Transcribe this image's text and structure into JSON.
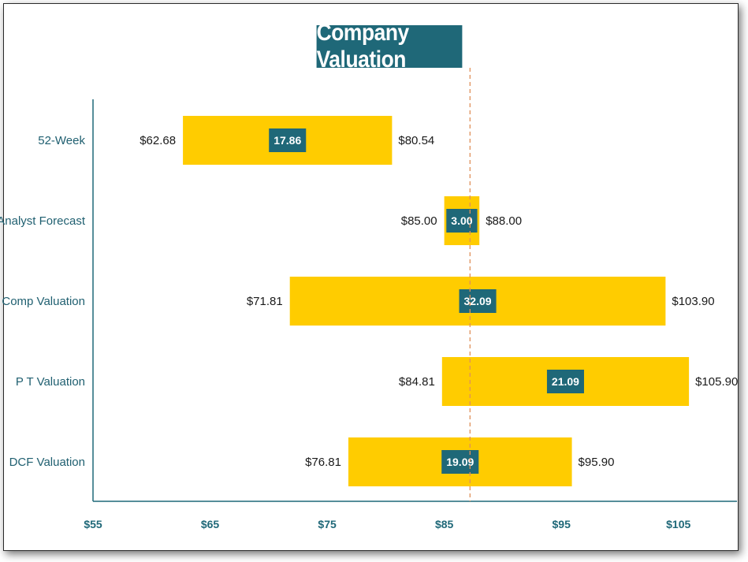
{
  "chart_data": {
    "type": "bar",
    "orientation": "horizontal-floating",
    "title": "Company Valuation",
    "xlim": [
      55,
      110
    ],
    "x_ticks": [
      {
        "value": 55,
        "label": "$55"
      },
      {
        "value": 65,
        "label": "$65"
      },
      {
        "value": 75,
        "label": "$75"
      },
      {
        "value": 85,
        "label": "$85"
      },
      {
        "value": 95,
        "label": "$95"
      },
      {
        "value": 105,
        "label": "$105"
      }
    ],
    "reference_line": 87.2,
    "categories": [
      "52-Week",
      "Analyst Forecast",
      "Comp Valuation",
      "P T Valuation",
      "DCF Valuation"
    ],
    "bars": [
      {
        "category": "52-Week",
        "low": 62.68,
        "high": 80.54,
        "low_label": "$62.68",
        "high_label": "$80.54",
        "diff_label": "17.86"
      },
      {
        "category": "Analyst Forecast",
        "low": 85.0,
        "high": 88.0,
        "low_label": "$85.00",
        "high_label": "$88.00",
        "diff_label": "3.00"
      },
      {
        "category": "Comp Valuation",
        "low": 71.81,
        "high": 103.9,
        "low_label": "$71.81",
        "high_label": "$103.90",
        "diff_label": "32.09"
      },
      {
        "category": "P T Valuation",
        "low": 84.81,
        "high": 105.9,
        "low_label": "$84.81",
        "high_label": "$105.90",
        "diff_label": "21.09"
      },
      {
        "category": "DCF Valuation",
        "low": 76.81,
        "high": 95.9,
        "low_label": "$76.81",
        "high_label": "$95.90",
        "diff_label": "19.09"
      }
    ],
    "grid": false,
    "legend": "none",
    "colors": {
      "bar": "#ffcc00",
      "label_box": "#1f6878",
      "axis": "#1f6878",
      "reference_line": "#e0905a"
    }
  }
}
